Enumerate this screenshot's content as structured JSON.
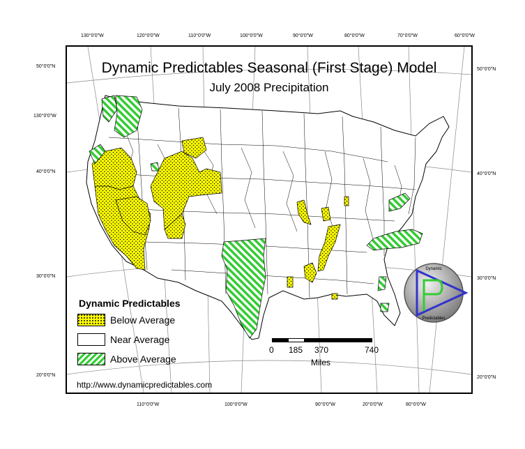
{
  "map": {
    "title": "Dynamic Predictables Seasonal (First Stage) Model",
    "subtitle": "July 2008 Precipitation",
    "url": "http://www.dynamicpredictables.com"
  },
  "legend": {
    "title": "Dynamic Predictables",
    "items": [
      {
        "label": "Below Average",
        "color": "#ffff00",
        "pattern": "dots"
      },
      {
        "label": "Near Average",
        "color": "#ffffff",
        "pattern": "none"
      },
      {
        "label": "Above Average",
        "color": "#33cc33",
        "pattern": "hatch"
      }
    ]
  },
  "scale": {
    "ticks": [
      "0",
      "185",
      "370",
      "740"
    ],
    "unit": "Miles"
  },
  "graticule": {
    "top": [
      "130°0'0\"W",
      "120°0'0\"W",
      "110°0'0\"W",
      "100°0'0\"W",
      "90°0'0\"W",
      "80°0'0\"W",
      "70°0'0\"W",
      "60°0'0\"W"
    ],
    "bottom": [
      "110°0'0\"W",
      "100°0'0\"W",
      "90°0'0\"W",
      "20°0'0\"W",
      "80°0'0\"W"
    ],
    "left": [
      "50°0'0\"N",
      "130°0'0\"W",
      "40°0'0\"N",
      "30°0'0\"N",
      "20°0'0\"N"
    ],
    "right": [
      "50°0'0\"N",
      "40°0'0\"N",
      "30°0'0\"N",
      "20°0'0\"N"
    ]
  },
  "logo": {
    "top_text": "Dynamic",
    "bottom_text": "Predictables",
    "colors": {
      "ring": "#888888",
      "triangle": "#3333cc",
      "letter": "#33cc33"
    }
  },
  "colors": {
    "below": "#ffff00",
    "above": "#33cc33",
    "outline": "#000000",
    "graticule": "#888888"
  }
}
